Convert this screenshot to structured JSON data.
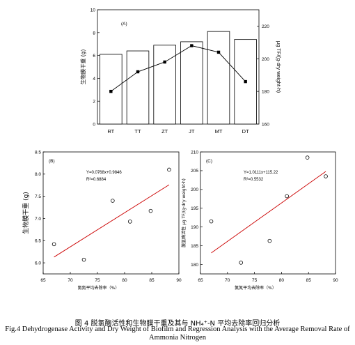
{
  "chart_data": [
    {
      "type": "bar",
      "panel_label": "(A)",
      "categories": [
        "RT",
        "TT",
        "ZT",
        "JT",
        "MT",
        "DT"
      ],
      "series": [
        {
          "axis": "left",
          "values": [
            6.1,
            6.4,
            6.9,
            7.2,
            8.1,
            7.4
          ]
        },
        {
          "axis": "right",
          "type": "line",
          "values": [
            180,
            192,
            198,
            208,
            204,
            186
          ]
        }
      ],
      "ylabel": "生物膜干重 (g)",
      "ylabel_right": "μg TF/(g·dry weight·h)",
      "ylim": [
        0,
        10
      ],
      "yticks": [
        0,
        2,
        4,
        6,
        8,
        10
      ],
      "ylim_right": [
        160,
        230
      ],
      "yticks_right": [
        160,
        180,
        200,
        220
      ]
    },
    {
      "type": "scatter",
      "panel_label": "(B)",
      "points": [
        {
          "x": 67.0,
          "y": 6.42
        },
        {
          "x": 72.5,
          "y": 6.07
        },
        {
          "x": 77.8,
          "y": 7.4
        },
        {
          "x": 81.0,
          "y": 6.93
        },
        {
          "x": 84.8,
          "y": 7.17
        },
        {
          "x": 88.2,
          "y": 8.1
        }
      ],
      "regression_line": {
        "x": [
          67.0,
          88.2
        ],
        "y": [
          6.13,
          7.76
        ]
      },
      "equation": "Y=0.0768x+0.9846",
      "r2": "R²=0.6884",
      "xlabel": "氨氮平均去除率（%）",
      "ylabel": "生物膜干重 (g)",
      "xlim": [
        65,
        90
      ],
      "xticks": [
        65,
        70,
        75,
        80,
        85,
        90
      ],
      "ylim": [
        5.75,
        8.5
      ],
      "yticks": [
        6.0,
        6.5,
        7.0,
        7.5,
        8.0,
        8.5
      ]
    },
    {
      "type": "scatter",
      "panel_label": "(C)",
      "points": [
        {
          "x": 67.0,
          "y": 191.5
        },
        {
          "x": 72.5,
          "y": 180.5
        },
        {
          "x": 77.8,
          "y": 186.3
        },
        {
          "x": 81.0,
          "y": 198.2
        },
        {
          "x": 84.8,
          "y": 208.5
        },
        {
          "x": 88.2,
          "y": 203.5
        }
      ],
      "regression_line": {
        "x": [
          67.0,
          88.2
        ],
        "y": [
          183.1,
          204.8
        ]
      },
      "equation": "Y=1.0111x+115.22",
      "r2": "R²=0.5532",
      "xlabel": "氨氮平均去除率（%）",
      "ylabel": "脱氢酶活性 μg TF/(g·dry weight·h)",
      "xlim": [
        65,
        90
      ],
      "xticks": [
        65,
        70,
        75,
        80,
        85,
        90
      ],
      "ylim": [
        177.5,
        210
      ],
      "yticks": [
        180,
        185,
        190,
        195,
        200,
        205,
        210
      ]
    }
  ],
  "caption": {
    "zh": "图 4 脱氢酶活性和生物膜干重及其与 NH₄⁺-N 平均去除率回归分析",
    "en_line1": "Fig.4   Dehydrogenase Activity and Dry Weight of Biofilm and Regression Analysis with the Average Removal Rate of",
    "en_line2": "Ammonia Nitrogen"
  },
  "colors": {
    "regression": "#cc0000",
    "axis": "#000000",
    "bar_fill": "#ffffff"
  }
}
